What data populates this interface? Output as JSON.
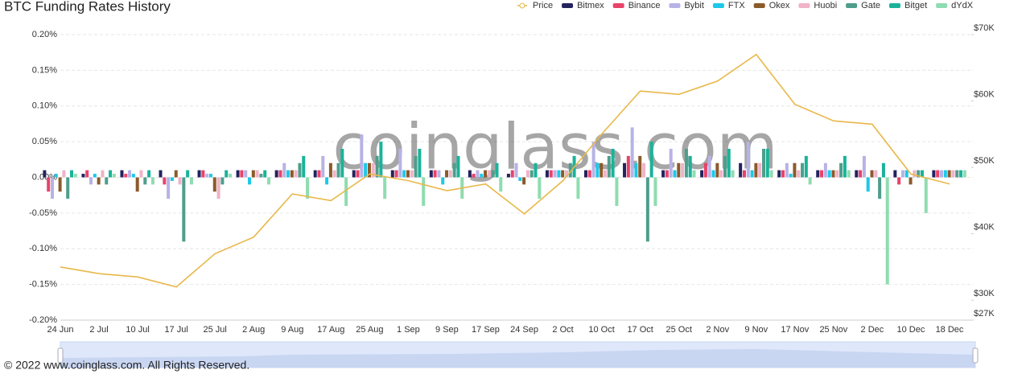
{
  "chart_data": {
    "type": "bar",
    "title": "BTC Funding Rates History",
    "watermark": "coinglass.com",
    "footer": "© 2022 www.coinglass.com. All Rights Reserved.",
    "categories": [
      "24 Jun",
      "2 Jul",
      "10 Jul",
      "17 Jul",
      "25 Jul",
      "2 Aug",
      "9 Aug",
      "17 Aug",
      "25 Aug",
      "1 Sep",
      "9 Sep",
      "17 Sep",
      "24 Sep",
      "2 Oct",
      "10 Oct",
      "17 Oct",
      "25 Oct",
      "2 Nov",
      "9 Nov",
      "17 Nov",
      "25 Nov",
      "2 Dec",
      "10 Dec",
      "18 Dec"
    ],
    "ylim": [
      -0.2,
      0.2
    ],
    "yticks": [
      {
        "value": -0.2,
        "label": "-0.20%"
      },
      {
        "value": -0.15,
        "label": "-0.15%"
      },
      {
        "value": -0.1,
        "label": "-0.10%"
      },
      {
        "value": -0.05,
        "label": "-0.05%"
      },
      {
        "value": 0,
        "label": "0.00%"
      },
      {
        "value": 0.05,
        "label": "0.05%"
      },
      {
        "value": 0.1,
        "label": "0.10%"
      },
      {
        "value": 0.15,
        "label": "0.15%"
      },
      {
        "value": 0.2,
        "label": "0.20%"
      }
    ],
    "y2lim": [
      27000,
      70000
    ],
    "y2ticks": [
      {
        "value": 27000,
        "label": "$27K"
      },
      {
        "value": 30000,
        "label": "$30K"
      },
      {
        "value": 40000,
        "label": "$40K"
      },
      {
        "value": 50000,
        "label": "$50K"
      },
      {
        "value": 60000,
        "label": "$60K"
      },
      {
        "value": 70000,
        "label": "$70K"
      }
    ],
    "grid": true,
    "legend": "top-right",
    "series": [
      {
        "name": "Price",
        "type": "line",
        "axis": "y2",
        "color": "#e8b84a",
        "values": [
          35000,
          34000,
          33500,
          32000,
          37000,
          39500,
          46000,
          45000,
          49000,
          48000,
          46500,
          47500,
          43000,
          48000,
          55000,
          61500,
          61000,
          63000,
          67000,
          59500,
          57000,
          56500,
          49000,
          47500
        ]
      },
      {
        "name": "Bitmex",
        "color": "#23235e",
        "values": [
          0.01,
          0.005,
          0.01,
          0.01,
          0.01,
          0.01,
          0.01,
          0.01,
          0.01,
          0.01,
          0.01,
          0.01,
          0.005,
          0.01,
          0.01,
          0.02,
          0.01,
          0.01,
          0.02,
          0.01,
          0.01,
          0.01,
          0.01,
          0.01
        ]
      },
      {
        "name": "Binance",
        "color": "#e8436a",
        "values": [
          -0.02,
          0.01,
          0.005,
          -0.01,
          0.01,
          0.01,
          0.01,
          0.01,
          0.01,
          0.01,
          0.01,
          0.005,
          0.01,
          0.01,
          0.01,
          0.03,
          0.01,
          0.02,
          0.01,
          0.01,
          0.01,
          0.01,
          -0.01,
          0.01
        ]
      },
      {
        "name": "Bybit",
        "color": "#b7b3e6",
        "values": [
          -0.03,
          -0.01,
          0.01,
          -0.03,
          0.005,
          0.01,
          0.02,
          0.03,
          0.06,
          0.04,
          0.01,
          0.01,
          0.02,
          0.01,
          0.05,
          0.07,
          0.04,
          0.03,
          0.05,
          0.02,
          0.02,
          0.03,
          0.01,
          0.01
        ]
      },
      {
        "name": "FTX",
        "color": "#1ec8e8",
        "values": [
          0.005,
          0.005,
          0.005,
          -0.005,
          0.005,
          -0.01,
          0.01,
          -0.01,
          0.02,
          0.01,
          -0.01,
          0.005,
          -0.005,
          0.01,
          0.02,
          0.02,
          0.01,
          0.01,
          0.01,
          0.005,
          0.01,
          -0.02,
          0.01,
          0.01
        ]
      },
      {
        "name": "Okex",
        "color": "#8b5a2b",
        "values": [
          -0.02,
          -0.01,
          -0.02,
          0.01,
          -0.02,
          0.01,
          0.01,
          0.02,
          0.02,
          0.01,
          0.01,
          0.01,
          -0.01,
          0.01,
          0.02,
          0.03,
          0.02,
          0.02,
          0.02,
          0.02,
          0.01,
          0.01,
          -0.01,
          0.01
        ]
      },
      {
        "name": "Huobi",
        "color": "#f0b3c8",
        "values": [
          0.01,
          0.01,
          0.01,
          -0.01,
          -0.03,
          0.01,
          0.01,
          0.01,
          0.02,
          0.01,
          0.01,
          0.01,
          0.01,
          0.01,
          0.01,
          0.02,
          0.02,
          0.01,
          0.02,
          0.01,
          0.01,
          0.01,
          0.01,
          0.01
        ]
      },
      {
        "name": "Gate",
        "color": "#4e9e8c",
        "values": [
          -0.03,
          -0.01,
          -0.01,
          -0.09,
          -0.01,
          0.005,
          0.02,
          0.02,
          0.03,
          0.03,
          0.02,
          0.01,
          0.01,
          0.02,
          0.03,
          -0.09,
          0.04,
          0.03,
          0.04,
          0.02,
          0.02,
          -0.03,
          0.01,
          0.01
        ]
      },
      {
        "name": "Bitget",
        "color": "#1ab39a",
        "values": [
          0.01,
          0.01,
          0.01,
          0.01,
          0.01,
          0.01,
          0.03,
          0.04,
          0.05,
          0.04,
          0.03,
          0.02,
          0.02,
          0.03,
          0.04,
          0.05,
          0.03,
          0.04,
          0.04,
          0.03,
          0.03,
          0.02,
          0.01,
          0.01
        ]
      },
      {
        "name": "dYdX",
        "color": "#8fdcb0",
        "values": [
          0.005,
          0.005,
          -0.01,
          -0.01,
          0.005,
          -0.01,
          -0.03,
          -0.04,
          -0.03,
          -0.04,
          -0.03,
          -0.02,
          -0.03,
          -0.03,
          -0.04,
          -0.04,
          0.01,
          0.01,
          0.01,
          -0.01,
          0.01,
          -0.15,
          -0.05,
          0.01
        ]
      }
    ]
  }
}
